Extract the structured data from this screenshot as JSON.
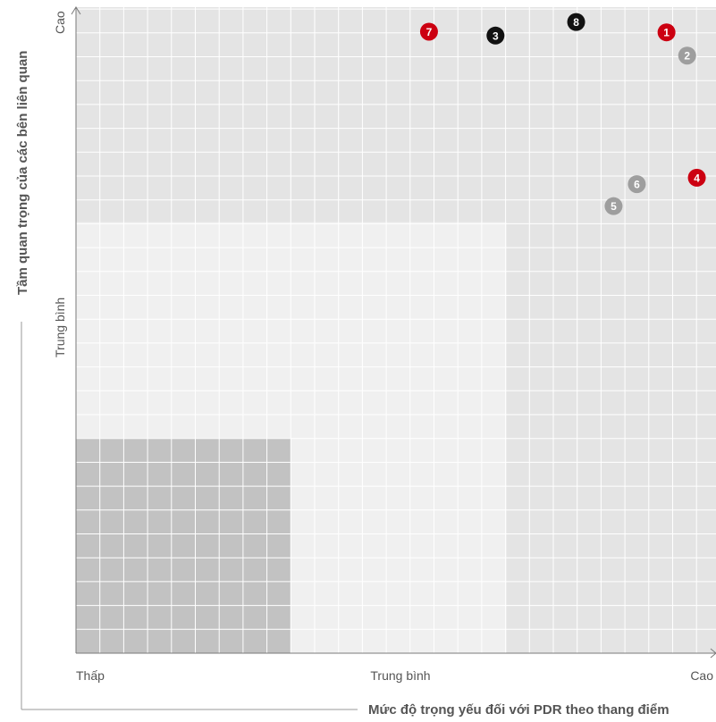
{
  "chart_data": {
    "type": "scatter",
    "title": "",
    "xlabel": "Mức độ trọng yếu đối với PDR theo thang điểm",
    "ylabel": "Tầm quan trọng của các bên liên quan",
    "x_ticks": [
      "Thấp",
      "Trung bình",
      "Cao"
    ],
    "y_ticks": [
      "Trung bình",
      "Cao"
    ],
    "xlim": [
      0,
      1
    ],
    "ylim": [
      0,
      1
    ],
    "grid": true,
    "zones": [
      {
        "level": "low",
        "x": [
          0.0,
          0.333
        ],
        "y": [
          0.0,
          0.333
        ],
        "color": "#c2c2c2"
      },
      {
        "level": "medium",
        "x": [
          0.0,
          1.0
        ],
        "y": [
          0.0,
          0.667
        ],
        "color": "#f0f0f0"
      },
      {
        "level": "high-top",
        "x": [
          0.0,
          1.0
        ],
        "y": [
          0.667,
          1.0
        ],
        "color": "#e4e4e4"
      },
      {
        "level": "high-right",
        "x": [
          0.667,
          1.0
        ],
        "y": [
          0.0,
          1.0
        ],
        "color": "#e4e4e4"
      }
    ],
    "points": [
      {
        "label": "1",
        "x": 0.915,
        "y": 0.961,
        "color": "#cc0011"
      },
      {
        "label": "2",
        "x": 0.947,
        "y": 0.925,
        "color": "#9e9e9e"
      },
      {
        "label": "3",
        "x": 0.65,
        "y": 0.956,
        "color": "#111111"
      },
      {
        "label": "4",
        "x": 0.962,
        "y": 0.736,
        "color": "#cc0011"
      },
      {
        "label": "5",
        "x": 0.833,
        "y": 0.692,
        "color": "#9e9e9e"
      },
      {
        "label": "6",
        "x": 0.869,
        "y": 0.726,
        "color": "#9e9e9e"
      },
      {
        "label": "7",
        "x": 0.547,
        "y": 0.962,
        "color": "#cc0011"
      },
      {
        "label": "8",
        "x": 0.775,
        "y": 0.977,
        "color": "#111111"
      }
    ]
  }
}
